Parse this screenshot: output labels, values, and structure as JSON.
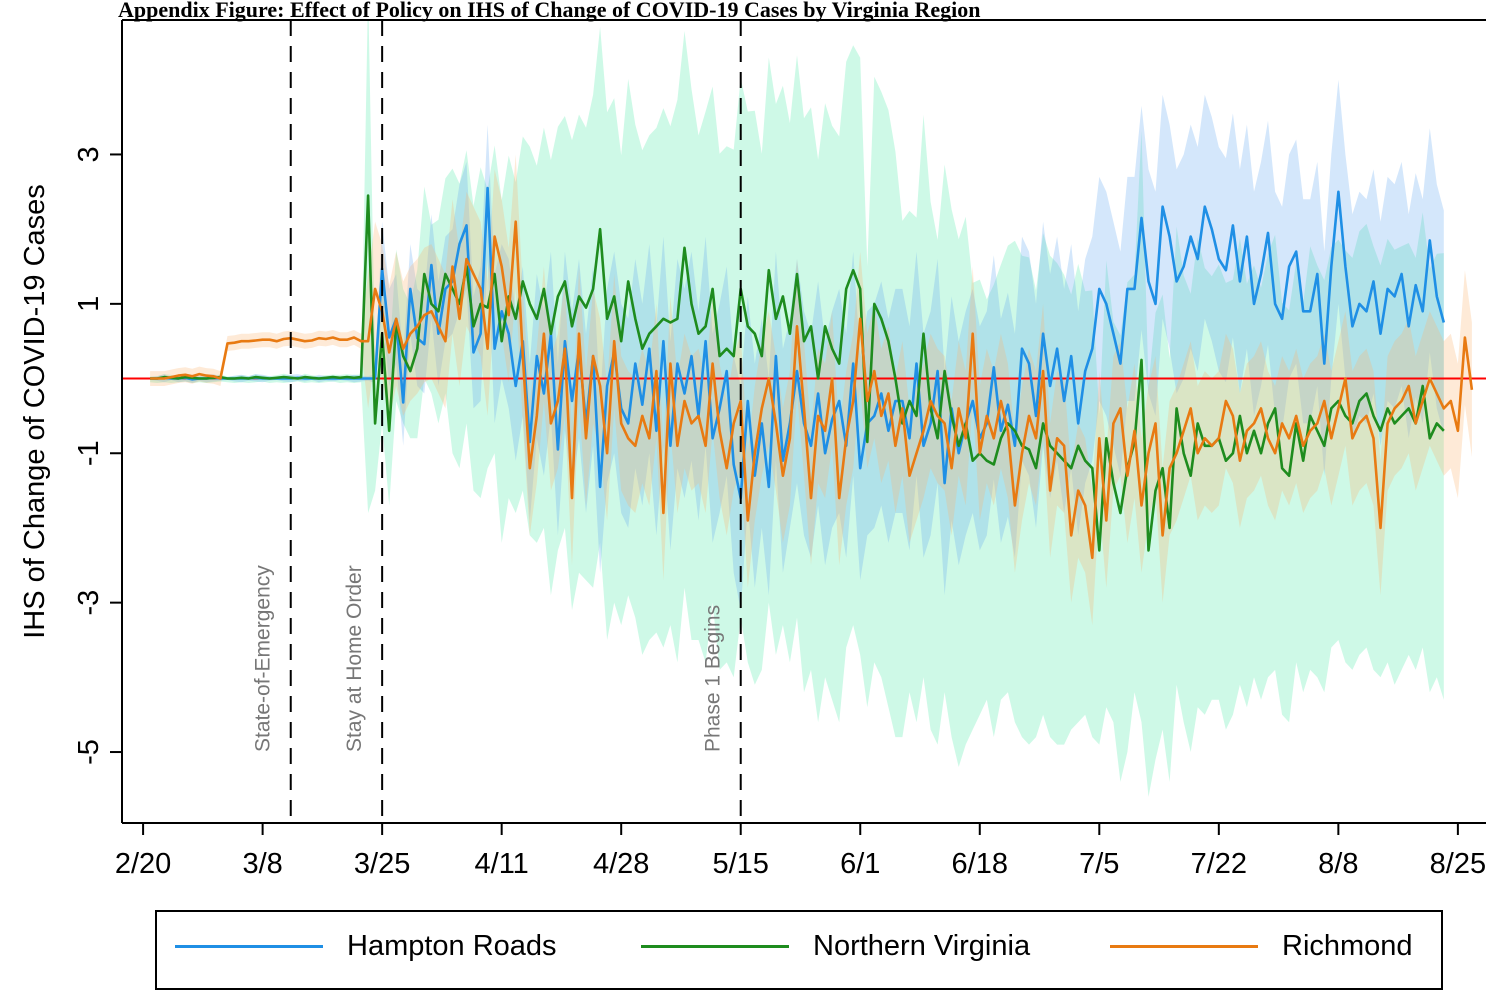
{
  "title": "Appendix Figure: Effect of Policy on IHS of Change of COVID-19 Cases by Virginia Region",
  "chart_data": {
    "type": "line",
    "ylabel": "IHS of Change of COVID-19 Cases",
    "xlabel": "",
    "x_ticks": [
      "2/20",
      "3/8",
      "3/25",
      "4/11",
      "4/28",
      "5/15",
      "6/1",
      "6/18",
      "7/5",
      "7/22",
      "8/8",
      "8/25"
    ],
    "x_tick_days": [
      0,
      17,
      34,
      51,
      68,
      85,
      102,
      119,
      136,
      153,
      170,
      187
    ],
    "y_ticks": [
      3,
      1,
      -1,
      -3,
      -5
    ],
    "xlim_days": [
      -3,
      191
    ],
    "ylim": [
      -5.95,
      4.8
    ],
    "reference_line": {
      "y": 0,
      "color": "#ff0000"
    },
    "events": [
      {
        "label": "State-of-Emergency",
        "day": 21
      },
      {
        "label": "Stay at Home Order",
        "day": 34
      },
      {
        "label": "Phase 1 Begins",
        "day": 85
      }
    ],
    "x_start": "2/21",
    "series": [
      {
        "name": "Hampton Roads",
        "color": "#1f8fe5",
        "band_color": "rgba(100,170,240,0.28)",
        "values": [
          0.0,
          0.0,
          0.01,
          0.0,
          0.0,
          0.01,
          -0.01,
          0.0,
          0.0,
          0.01,
          0.0,
          0.0,
          0.0,
          0.0,
          0.0,
          0.01,
          0.0,
          0.0,
          0.0,
          0.0,
          0.0,
          0.01,
          0.0,
          0.0,
          0.0,
          0.0,
          0.0,
          0.0,
          0.0,
          0.0,
          0.0,
          0.0,
          0.0,
          1.47,
          0.55,
          0.8,
          -0.32,
          1.2,
          0.54,
          0.46,
          1.52,
          0.6,
          1.2,
          1.3,
          1.8,
          2.05,
          0.35,
          0.6,
          2.55,
          0.4,
          0.9,
          0.6,
          -0.1,
          0.5,
          -0.85,
          0.3,
          -0.2,
          0.6,
          -0.95,
          0.5,
          -0.3,
          0.4,
          -0.6,
          0.3,
          -1.45,
          -0.1,
          0.35,
          -0.4,
          -0.6,
          0.2,
          -0.35,
          0.4,
          -0.7,
          0.5,
          -0.9,
          0.2,
          -0.2,
          0.3,
          -0.5,
          0.5,
          -0.8,
          -0.4,
          0.1,
          -1.15,
          -1.6,
          -0.3,
          -1.3,
          -0.6,
          -1.45,
          0.3,
          -1.1,
          -0.6,
          0.1,
          -0.6,
          -0.9,
          -0.2,
          -1.0,
          -0.55,
          -0.3,
          -0.9,
          0.2,
          -1.2,
          -0.6,
          -0.5,
          -0.2,
          -0.7,
          -0.3,
          -0.3,
          -0.8,
          0.2,
          -0.9,
          -0.6,
          0.1,
          -1.4,
          -0.4,
          -1.0,
          -0.6,
          -0.3,
          -0.8,
          -0.6,
          0.15,
          -0.7,
          -0.35,
          -0.9,
          0.4,
          0.2,
          -0.5,
          0.6,
          -0.1,
          0.4,
          -0.3,
          0.3,
          -0.6,
          0.1,
          0.4,
          1.2,
          1.0,
          0.6,
          0.2,
          1.2,
          1.2,
          2.15,
          1.3,
          1.0,
          2.3,
          1.9,
          1.3,
          1.5,
          1.9,
          1.6,
          2.3,
          2.0,
          1.6,
          1.45,
          2.05,
          1.3,
          1.9,
          1.0,
          1.4,
          1.95,
          1.0,
          0.8,
          1.5,
          1.7,
          0.9,
          0.9,
          1.4,
          0.2,
          1.5,
          2.5,
          1.5,
          0.7,
          1.0,
          0.9,
          1.3,
          0.6,
          1.2,
          1.1,
          1.4,
          0.7,
          1.25,
          0.9,
          1.85,
          1.1,
          0.75
        ],
        "lower": [
          -0.02,
          -0.03,
          -0.05,
          -0.02,
          -0.05,
          -0.04,
          -0.06,
          -0.03,
          -0.05,
          -0.04,
          -0.03,
          -0.02,
          -0.04,
          -0.05,
          -0.03,
          -0.04,
          -0.05,
          -0.03,
          -0.02,
          -0.04,
          -0.05,
          -0.03,
          -0.04,
          -0.02,
          -0.05,
          -0.03,
          -0.04,
          -0.02,
          -0.03,
          -0.05,
          -0.04,
          -0.03,
          -0.06,
          0.9,
          -0.1,
          0.2,
          -0.9,
          0.6,
          -0.1,
          -0.2,
          0.8,
          -0.1,
          0.5,
          0.6,
          0.9,
          1.2,
          -0.4,
          -0.3,
          1.6,
          -0.6,
          0.0,
          -0.4,
          -1.1,
          -0.5,
          -1.9,
          -0.8,
          -1.3,
          -0.5,
          -2.1,
          -0.7,
          -1.5,
          -0.8,
          -1.8,
          -0.9,
          -2.6,
          -1.4,
          -1.0,
          -1.8,
          -2.0,
          -1.2,
          -1.7,
          -1.0,
          -2.1,
          -0.9,
          -2.3,
          -1.2,
          -1.6,
          -1.1,
          -1.9,
          -0.9,
          -2.2,
          -1.8,
          -1.3,
          -2.6,
          -3.1,
          -1.7,
          -2.8,
          -2.0,
          -2.9,
          -1.1,
          -2.6,
          -2.0,
          -1.4,
          -2.1,
          -2.4,
          -1.7,
          -2.5,
          -2.0,
          -1.8,
          -2.4,
          -1.3,
          -2.7,
          -2.1,
          -2.0,
          -1.7,
          -2.2,
          -1.8,
          -1.8,
          -2.3,
          -1.3,
          -2.4,
          -2.1,
          -1.4,
          -2.9,
          -1.9,
          -2.5,
          -2.1,
          -1.8,
          -2.3,
          -2.1,
          -1.35,
          -2.2,
          -1.85,
          -2.4,
          -1.1,
          -1.3,
          -2.0,
          -0.9,
          -1.6,
          -1.1,
          -1.8,
          -1.2,
          -2.1,
          -1.4,
          -1.1,
          -0.3,
          -0.5,
          -0.9,
          -1.3,
          -0.3,
          -0.3,
          0.65,
          -0.2,
          -0.5,
          0.8,
          0.4,
          -0.2,
          0.0,
          0.4,
          0.1,
          0.8,
          0.5,
          0.1,
          -0.05,
          0.55,
          -0.2,
          0.4,
          -0.5,
          -0.1,
          0.45,
          -0.5,
          -0.7,
          0.0,
          0.2,
          -0.6,
          -0.6,
          -0.1,
          -1.3,
          0.0,
          1.0,
          0.0,
          -0.8,
          -0.5,
          -0.6,
          -0.2,
          -0.9,
          -0.3,
          -0.4,
          -0.1,
          -0.8,
          -0.25,
          -0.6,
          0.35,
          -0.4,
          -0.75
        ],
        "upper": [
          0.02,
          0.03,
          0.06,
          0.02,
          0.05,
          0.06,
          0.04,
          0.03,
          0.05,
          0.06,
          0.03,
          0.02,
          0.04,
          0.05,
          0.03,
          0.06,
          0.05,
          0.03,
          0.02,
          0.04,
          0.05,
          0.06,
          0.04,
          0.02,
          0.05,
          0.03,
          0.04,
          0.02,
          0.03,
          0.05,
          0.04,
          0.03,
          0.06,
          2.1,
          1.2,
          1.4,
          0.3,
          1.8,
          1.2,
          1.1,
          2.2,
          1.3,
          1.9,
          2.0,
          2.6,
          2.9,
          1.1,
          1.5,
          3.4,
          1.4,
          1.8,
          1.6,
          0.9,
          1.5,
          0.2,
          1.4,
          0.9,
          1.7,
          0.2,
          1.7,
          0.9,
          1.6,
          0.6,
          1.5,
          -0.3,
          1.2,
          1.7,
          1.0,
          0.8,
          1.6,
          1.0,
          1.8,
          0.7,
          1.9,
          0.5,
          1.6,
          1.2,
          1.7,
          0.9,
          1.9,
          0.6,
          1.0,
          1.5,
          0.3,
          -0.1,
          1.1,
          0.2,
          0.8,
          0.0,
          1.7,
          0.4,
          0.8,
          1.6,
          0.9,
          0.6,
          1.3,
          0.5,
          0.9,
          1.2,
          0.6,
          1.7,
          0.3,
          0.9,
          1.0,
          1.3,
          0.8,
          1.2,
          1.2,
          0.7,
          1.7,
          0.6,
          0.9,
          1.6,
          0.1,
          1.1,
          0.5,
          0.9,
          1.2,
          0.7,
          0.9,
          1.65,
          0.8,
          1.15,
          0.6,
          1.9,
          1.7,
          1.0,
          2.1,
          1.4,
          1.9,
          1.2,
          1.8,
          0.9,
          1.6,
          1.9,
          2.7,
          2.5,
          2.1,
          1.7,
          2.7,
          2.7,
          3.65,
          2.8,
          2.5,
          3.8,
          3.4,
          2.8,
          3.0,
          3.4,
          3.1,
          3.8,
          3.5,
          3.1,
          2.95,
          3.55,
          2.8,
          3.4,
          2.5,
          2.9,
          3.45,
          2.5,
          2.3,
          3.0,
          3.2,
          2.4,
          2.4,
          2.9,
          1.7,
          3.0,
          4.0,
          3.0,
          2.2,
          2.5,
          2.4,
          2.8,
          2.1,
          2.7,
          2.6,
          2.9,
          2.2,
          2.75,
          2.4,
          3.35,
          2.6,
          2.25
        ]
      },
      {
        "name": "Northern Virginia",
        "color": "#1e8c1e",
        "band_color": "rgba(80,235,170,0.28)",
        "values": [
          0.0,
          0.0,
          0.02,
          0.01,
          0.0,
          0.02,
          0.01,
          0.0,
          0.0,
          0.01,
          0.02,
          0.0,
          0.0,
          0.01,
          0.0,
          0.02,
          0.01,
          0.0,
          0.01,
          0.02,
          0.01,
          0.0,
          0.02,
          0.01,
          0.0,
          0.01,
          0.02,
          0.01,
          0.02,
          0.01,
          0.02,
          2.45,
          -0.6,
          0.6,
          -0.7,
          0.75,
          0.3,
          0.1,
          0.4,
          1.4,
          1.0,
          0.9,
          1.4,
          1.2,
          1.0,
          1.5,
          0.7,
          1.0,
          0.95,
          1.4,
          0.5,
          1.1,
          0.8,
          1.3,
          1.0,
          0.8,
          1.2,
          0.6,
          1.1,
          1.3,
          0.7,
          1.1,
          0.95,
          1.2,
          2.0,
          0.8,
          1.1,
          0.5,
          1.3,
          0.8,
          0.4,
          0.6,
          0.7,
          0.8,
          0.75,
          0.8,
          1.75,
          1.0,
          0.6,
          0.7,
          1.2,
          0.3,
          0.4,
          0.3,
          1.2,
          0.7,
          0.6,
          0.3,
          1.45,
          0.8,
          1.1,
          0.6,
          1.4,
          0.5,
          0.7,
          0.0,
          0.7,
          0.4,
          0.2,
          1.2,
          1.45,
          1.2,
          -0.85,
          1.0,
          0.8,
          0.5,
          0.0,
          -0.6,
          -0.3,
          -0.5,
          0.6,
          -0.4,
          -0.8,
          0.1,
          -0.5,
          -0.9,
          -0.6,
          -1.1,
          -1.0,
          -1.1,
          -1.15,
          -0.8,
          -0.6,
          -0.7,
          -0.9,
          -0.95,
          -1.2,
          -0.6,
          -0.9,
          -1.0,
          -1.1,
          -1.2,
          -0.9,
          -1.1,
          -1.2,
          -2.3,
          -0.8,
          -1.4,
          -1.8,
          -1.2,
          -0.85,
          0.25,
          -2.3,
          -1.5,
          -1.2,
          -2.0,
          -0.4,
          -1.0,
          -1.3,
          -0.6,
          -0.9,
          -0.9,
          -0.8,
          -1.1,
          -1.0,
          -0.5,
          -1.0,
          -0.7,
          -1.0,
          -0.6,
          -0.4,
          -1.2,
          -1.3,
          -0.6,
          -1.1,
          -0.5,
          -0.7,
          -0.9,
          -0.4,
          -0.3,
          -0.5,
          -0.6,
          -0.3,
          -0.2,
          -0.5,
          -0.7,
          -0.4,
          -0.6,
          -0.5,
          -0.4,
          -0.6,
          -0.1,
          -0.8,
          -0.6,
          -0.7
        ]
      },
      {
        "name": "Richmond",
        "color": "#e87a12",
        "band_color": "rgba(250,180,110,0.28)",
        "values": [
          0.0,
          0.0,
          0.0,
          0.02,
          0.04,
          0.05,
          0.03,
          0.06,
          0.04,
          0.03,
          0.0,
          0.47,
          0.48,
          0.5,
          0.5,
          0.51,
          0.52,
          0.52,
          0.5,
          0.53,
          0.54,
          0.52,
          0.5,
          0.51,
          0.54,
          0.53,
          0.55,
          0.52,
          0.52,
          0.55,
          0.5,
          0.5,
          1.2,
          0.9,
          0.35,
          0.8,
          0.4,
          0.6,
          0.7,
          0.85,
          0.9,
          0.7,
          0.5,
          1.5,
          0.8,
          1.6,
          1.4,
          1.2,
          0.4,
          1.9,
          1.5,
          0.85,
          2.1,
          0.3,
          -1.2,
          -0.5,
          0.6,
          -0.6,
          -0.3,
          0.4,
          -1.6,
          0.6,
          -0.8,
          0.3,
          -0.1,
          -1.0,
          0.5,
          -0.6,
          -0.8,
          -0.9,
          -0.5,
          -0.8,
          0.1,
          -1.8,
          0.2,
          -0.9,
          -0.3,
          -0.6,
          -0.5,
          -0.9,
          0.2,
          -0.7,
          -1.2,
          -0.6,
          -0.3,
          -1.9,
          -1.0,
          -0.4,
          0.0,
          -0.6,
          -1.3,
          -0.8,
          0.7,
          -0.4,
          -1.6,
          -0.5,
          -0.7,
          0.0,
          -1.6,
          -0.8,
          -0.3,
          0.8,
          -0.3,
          0.1,
          -0.5,
          -0.2,
          -0.9,
          -0.4,
          -1.3,
          -1.0,
          -0.7,
          -0.3,
          -0.5,
          -0.6,
          -1.2,
          -0.4,
          -0.8,
          0.6,
          -1.0,
          -0.5,
          -0.8,
          -0.3,
          -0.7,
          -1.7,
          -1.0,
          -0.5,
          -0.8,
          0.1,
          -1.5,
          -0.8,
          -0.9,
          -2.1,
          -1.5,
          -1.7,
          -2.4,
          -0.8,
          -1.9,
          -0.6,
          -0.4,
          -1.3,
          -0.7,
          -1.7,
          -1.0,
          -0.6,
          -2.1,
          -1.2,
          -1.0,
          -0.7,
          -0.4,
          -1.0,
          -0.8,
          -0.9,
          -0.8,
          -0.3,
          -0.5,
          -1.1,
          -0.7,
          -0.6,
          -0.4,
          -0.8,
          -1.0,
          -0.6,
          -0.8,
          -0.5,
          -0.9,
          -0.7,
          -0.6,
          -0.3,
          -0.8,
          -0.4,
          0.0,
          -0.8,
          -0.6,
          -0.5,
          -0.8,
          -2.0,
          -0.6,
          -0.4,
          -0.3,
          -0.1,
          -0.6,
          -0.3,
          0.0,
          -0.2,
          -0.4,
          -0.3,
          -0.7,
          0.55,
          -0.15
        ]
      }
    ],
    "green_band": {
      "lower": [
        -0.05,
        -0.06,
        -0.05,
        -0.06,
        -0.05,
        -0.04,
        -0.06,
        -0.05,
        -0.06,
        -0.05,
        -0.04,
        -0.05,
        -0.06,
        -0.05,
        -0.06,
        -0.05,
        -0.04,
        -0.06,
        -0.05,
        -0.06,
        -0.05,
        -0.04,
        -0.06,
        -0.05,
        -0.06,
        -0.05,
        -0.04,
        -0.06,
        -0.05,
        -0.06,
        -0.05,
        -1.8,
        -1.5,
        -0.6,
        -1.7,
        -0.3,
        -0.6,
        -0.8,
        -0.8,
        0.0,
        -0.2,
        -0.6,
        -0.2,
        -1.0,
        -1.2,
        -0.6,
        -1.5,
        -1.6,
        -1.2,
        -1.0,
        -2.2,
        -1.6,
        -1.8,
        -1.5,
        -2.1,
        -2.2,
        -2.0,
        -2.9,
        -2.3,
        -2.0,
        -3.1,
        -2.6,
        -2.7,
        -2.8,
        -2.2,
        -3.5,
        -3.0,
        -3.3,
        -2.9,
        -3.2,
        -3.7,
        -3.5,
        -3.4,
        -3.6,
        -3.3,
        -3.8,
        -2.8,
        -3.5,
        -3.5,
        -3.8,
        -3.0,
        -3.9,
        -3.8,
        -4.0,
        -3.2,
        -3.8,
        -4.1,
        -3.9,
        -3.0,
        -3.7,
        -3.3,
        -3.8,
        -3.2,
        -4.2,
        -3.9,
        -4.6,
        -4.0,
        -4.3,
        -4.6,
        -3.6,
        -3.3,
        -3.7,
        -4.4,
        -3.8,
        -4.0,
        -4.4,
        -4.8,
        -4.8,
        -4.2,
        -4.6,
        -4.0,
        -4.7,
        -4.9,
        -4.2,
        -4.8,
        -5.2,
        -4.9,
        -4.7,
        -4.5,
        -4.3,
        -4.8,
        -4.3,
        -4.2,
        -4.6,
        -4.8,
        -4.9,
        -4.8,
        -4.5,
        -4.8,
        -4.9,
        -4.9,
        -4.7,
        -4.6,
        -4.5,
        -4.8,
        -4.9,
        -4.4,
        -4.6,
        -5.4,
        -5.0,
        -4.2,
        -4.6,
        -5.6,
        -5.1,
        -4.7,
        -5.4,
        -4.1,
        -4.6,
        -5.0,
        -4.4,
        -4.5,
        -4.3,
        -4.3,
        -4.7,
        -4.5,
        -4.1,
        -4.4,
        -4.0,
        -4.3,
        -4.0,
        -3.9,
        -4.5,
        -4.6,
        -3.8,
        -4.2,
        -3.9,
        -4.0,
        -4.2,
        -3.6,
        -3.5,
        -3.8,
        -3.9,
        -3.7,
        -3.6,
        -3.9,
        -4.0,
        -3.8,
        -4.1,
        -3.9,
        -3.7,
        -3.9,
        -3.6,
        -4.2,
        -4.0,
        -4.3
      ]
    }
  },
  "legend": {
    "items": [
      {
        "label": "Hampton Roads",
        "color": "#1f8fe5"
      },
      {
        "label": "Northern Virginia",
        "color": "#1e8c1e"
      },
      {
        "label": "Richmond",
        "color": "#e87a12"
      }
    ]
  }
}
